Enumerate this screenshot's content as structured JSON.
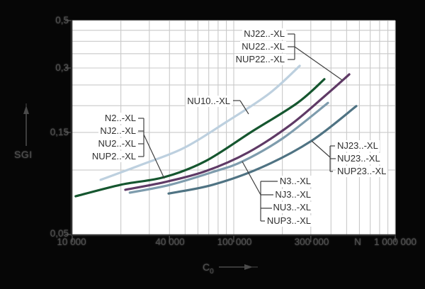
{
  "figure": {
    "background": "#060606",
    "plot_bg": "#ffffff",
    "grid_color": "#c9c9c9",
    "axis_color": "#2f2f2f",
    "callout_color": "#3f3f3f",
    "arrow_color": "#4a4a4a"
  },
  "y_axis": {
    "label": "SGI",
    "scale": "log",
    "min": 0.05,
    "max": 0.5,
    "tick_labels": [
      "0,5",
      "0,3",
      "0,15",
      "0,05"
    ],
    "tick_values": [
      0.5,
      0.3,
      0.15,
      0.05
    ],
    "minor_grid_step": 0.05
  },
  "x_axis": {
    "label": "C",
    "label_sub": "0",
    "unit": "N",
    "scale": "log",
    "min": 10000,
    "max": 1000000,
    "tick_labels": [
      "10 000",
      "40 000",
      "100 000",
      "300 000",
      "1 000 000"
    ],
    "tick_values": [
      10000,
      40000,
      100000,
      300000,
      1000000
    ]
  },
  "chart_data": {
    "type": "line",
    "title": "",
    "xlabel": "C0",
    "x_unit": "N",
    "ylabel": "SGI",
    "x_scale": "log",
    "y_scale": "log",
    "xlim": [
      10000,
      1000000
    ],
    "ylim": [
      0.05,
      0.5
    ],
    "grid": true,
    "series": [
      {
        "id": "nu10",
        "labels": [
          "NU10..-XL"
        ],
        "color": "#bdd0df",
        "points": [
          [
            15000,
            0.09
          ],
          [
            26900,
            0.106
          ],
          [
            49300,
            0.127
          ],
          [
            90200,
            0.168
          ],
          [
            166000,
            0.228
          ],
          [
            256000,
            0.307
          ]
        ]
      },
      {
        "id": "series2",
        "labels": [
          "N2..-XL",
          "NJ2..-XL",
          "NU2..-XL",
          "NUP2..-XL"
        ],
        "color": "#15562f",
        "points": [
          [
            10500,
            0.0754
          ],
          [
            19900,
            0.0853
          ],
          [
            37200,
            0.0927
          ],
          [
            66700,
            0.11
          ],
          [
            129000,
            0.151
          ],
          [
            248000,
            0.206
          ],
          [
            364000,
            0.266
          ]
        ]
      },
      {
        "id": "series22",
        "labels": [
          "NJ22..-XL",
          "NU22..-XL",
          "NUP22..-XL"
        ],
        "color": "#5f3a66",
        "points": [
          [
            21300,
            0.0809
          ],
          [
            37200,
            0.0878
          ],
          [
            66700,
            0.0987
          ],
          [
            123000,
            0.121
          ],
          [
            223000,
            0.162
          ],
          [
            364000,
            0.221
          ],
          [
            519000,
            0.28
          ]
        ]
      },
      {
        "id": "series3",
        "labels": [
          "N3..-XL",
          "NJ3..-XL",
          "NU3..-XL",
          "NUP3..-XL"
        ],
        "color": "#7e9cad",
        "points": [
          [
            22700,
            0.0784
          ],
          [
            40300,
            0.0853
          ],
          [
            74000,
            0.0979
          ],
          [
            114000,
            0.11
          ],
          [
            202000,
            0.141
          ],
          [
            383000,
            0.206
          ]
        ]
      },
      {
        "id": "series23",
        "labels": [
          "NJ23..-XL",
          "NU23..-XL",
          "NUP23..-XL"
        ],
        "color": "#4f7383",
        "points": [
          [
            39500,
            0.0777
          ],
          [
            74000,
            0.0853
          ],
          [
            149000,
            0.103
          ],
          [
            303000,
            0.137
          ],
          [
            574000,
            0.199
          ]
        ]
      }
    ]
  }
}
